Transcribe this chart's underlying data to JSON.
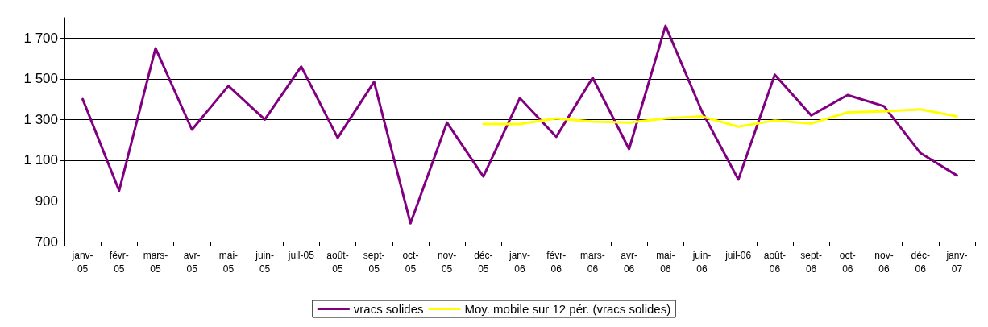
{
  "chart_data": {
    "type": "line",
    "categories": [
      "janv-05",
      "févr-05",
      "mars-05",
      "avr-05",
      "mai-05",
      "juin-05",
      "juil-05",
      "août-05",
      "sept-05",
      "oct-05",
      "nov-05",
      "déc-05",
      "janv-06",
      "févr-06",
      "mars-06",
      "avr-06",
      "mai-06",
      "juin-06",
      "juil-06",
      "août-06",
      "sept-06",
      "oct-06",
      "nov-06",
      "déc-06",
      "janv-07"
    ],
    "series": [
      {
        "name": "vracs solides",
        "color": "#800080",
        "values": [
          1400,
          950,
          1650,
          1250,
          1465,
          1300,
          1560,
          1210,
          1485,
          790,
          1285,
          1020,
          1405,
          1215,
          1505,
          1155,
          1760,
          1340,
          1005,
          1520,
          1320,
          1420,
          1365,
          1135,
          1025
        ]
      },
      {
        "name": "Moy. mobile sur 12 pér. (vracs solides)",
        "color": "#ffff00",
        "values": [
          null,
          null,
          null,
          null,
          null,
          null,
          null,
          null,
          null,
          null,
          null,
          1278,
          1278,
          1305,
          1290,
          1285,
          1305,
          1315,
          1265,
          1295,
          1280,
          1335,
          1340,
          1350,
          1315
        ]
      }
    ],
    "ylim": [
      700,
      1800
    ],
    "yticks": [
      {
        "value": 700,
        "label": "700"
      },
      {
        "value": 900,
        "label": "900"
      },
      {
        "value": 1100,
        "label": "1 100"
      },
      {
        "value": 1300,
        "label": "1 300"
      },
      {
        "value": 1500,
        "label": "1 500"
      },
      {
        "value": 1700,
        "label": "1 700"
      }
    ],
    "grid": "y",
    "legend": "bottom",
    "marker": "none",
    "line_style": "solid"
  }
}
